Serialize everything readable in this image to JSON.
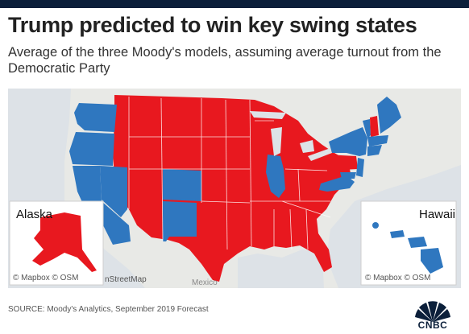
{
  "title": "Trump predicted to win key swing states",
  "subtitle": "Average of the three Moody's models, assuming average turnout from the Democratic Party",
  "colors": {
    "republican": "#e8181f",
    "democrat": "#2f77bf",
    "land": "#e9e9e7",
    "water": "#dfe4ea",
    "brand": "#0b1f3a"
  },
  "map": {
    "insets": {
      "alaska": {
        "label": "Alaska",
        "attribution": "© Mapbox © OSM"
      },
      "hawaii": {
        "label": "Hawaii",
        "attribution": "© Mapbox © OSM"
      }
    },
    "basemap_labels": {
      "streetmap": "nStreetMap",
      "mexico": "Mexico"
    },
    "state_winners": {
      "WA": "Democrat",
      "OR": "Democrat",
      "CA": "Democrat",
      "NV": "Democrat",
      "CO": "Democrat",
      "NM": "Democrat",
      "IL": "Democrat",
      "VA": "Democrat",
      "NY": "Democrat",
      "VT": "Democrat",
      "ME": "Democrat",
      "MA": "Democrat",
      "CT": "Democrat",
      "RI": "Democrat",
      "NJ": "Democrat",
      "DE": "Democrat",
      "MD": "Democrat",
      "HI": "Democrat",
      "ID": "Republican",
      "MT": "Republican",
      "WY": "Republican",
      "UT": "Republican",
      "AZ": "Republican",
      "ND": "Republican",
      "SD": "Republican",
      "NE": "Republican",
      "KS": "Republican",
      "OK": "Republican",
      "TX": "Republican",
      "MN": "Republican",
      "IA": "Republican",
      "MO": "Republican",
      "AR": "Republican",
      "LA": "Republican",
      "WI": "Republican",
      "MI": "Republican",
      "IN": "Republican",
      "OH": "Republican",
      "KY": "Republican",
      "TN": "Republican",
      "MS": "Republican",
      "AL": "Republican",
      "GA": "Republican",
      "FL": "Republican",
      "SC": "Republican",
      "NC": "Republican",
      "WV": "Republican",
      "PA": "Republican",
      "NH": "Republican",
      "AK": "Republican"
    }
  },
  "source": "SOURCE: Moody's Analytics, September 2019 Forecast",
  "logo": {
    "icon": "peacock-icon",
    "text": "CNBC"
  }
}
